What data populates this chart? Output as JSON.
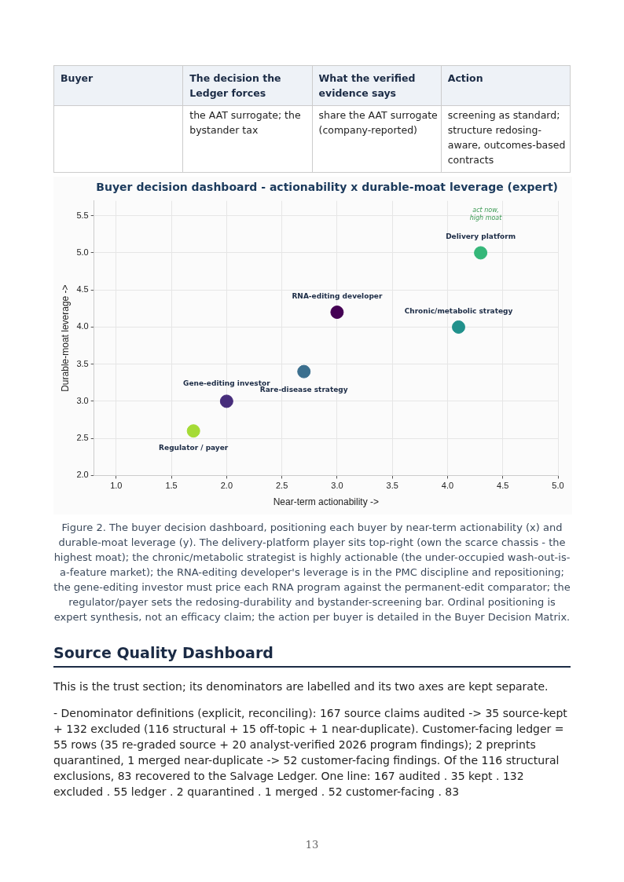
{
  "chart_data": {
    "type": "scatter",
    "title": "Buyer decision dashboard - actionability x durable-moat leverage (expert)",
    "xlabel": "Near-term actionability ->",
    "ylabel": "Durable-moat leverage ->",
    "xlim": [
      0.8,
      5.0
    ],
    "ylim": [
      2.0,
      5.7
    ],
    "xticks": [
      {
        "value": 1.0,
        "label": "1.0"
      },
      {
        "value": 1.5,
        "label": "1.5"
      },
      {
        "value": 2.0,
        "label": "2.0"
      },
      {
        "value": 2.5,
        "label": "2.5"
      },
      {
        "value": 3.0,
        "label": "3.0"
      },
      {
        "value": 3.5,
        "label": "3.5"
      },
      {
        "value": 4.0,
        "label": "4.0"
      },
      {
        "value": 4.5,
        "label": "4.5"
      },
      {
        "value": 5.0,
        "label": "5.0"
      }
    ],
    "yticks": [
      {
        "value": 2.0,
        "label": "2.0"
      },
      {
        "value": 2.5,
        "label": "2.5"
      },
      {
        "value": 3.0,
        "label": "3.0"
      },
      {
        "value": 3.5,
        "label": "3.5"
      },
      {
        "value": 4.0,
        "label": "4.0"
      },
      {
        "value": 4.5,
        "label": "4.5"
      },
      {
        "value": 5.0,
        "label": "5.0"
      },
      {
        "value": 5.5,
        "label": "5.5"
      }
    ],
    "grid": true,
    "legend": false,
    "marker": "circle",
    "series": [
      {
        "name": "Regulator / payer",
        "color": "#a5db36",
        "x": [
          1.7
        ],
        "values": [
          2.6
        ]
      },
      {
        "name": "Gene-editing investor",
        "color": "#472d7b",
        "x": [
          2.0
        ],
        "values": [
          3.0
        ]
      },
      {
        "name": "Rare-disease strategy",
        "color": "#3b6f8e",
        "x": [
          2.7
        ],
        "values": [
          3.4
        ]
      },
      {
        "name": "RNA-editing developer",
        "color": "#440154",
        "x": [
          3.0
        ],
        "values": [
          4.2
        ]
      },
      {
        "name": "Chronic/metabolic strategy",
        "color": "#21918c",
        "x": [
          4.1
        ],
        "values": [
          4.0
        ]
      },
      {
        "name": "Delivery platform",
        "color": "#35b779",
        "x": [
          4.3
        ],
        "values": [
          5.0
        ]
      }
    ],
    "annotations": [
      "Buyer",
      "The decision the Ledger forces",
      "What the verified evidence says",
      "Action",
      "the AAT surrogate; the bystander tax",
      "share the AAT surrogate (company-reported)",
      "screening as standard; structure redosing-aware, outcomes-based contracts",
      "act now,\nhigh moat",
      "Figure 2. The buyer decision dashboard, positioning each buyer by near-term actionability (x) and durable-moat leverage (y). The delivery-platform player sits top-right (own the scarce chassis - the highest moat); the chronic/metabolic strategist is highly actionable (the under-occupied wash-out-is-a-feature market); the RNA-editing developer's leverage is in the PMC discipline and repositioning; the gene-editing investor must price each RNA program against the permanent-edit comparator; the regulator/payer sets the redosing-durability and bystander-screening bar. Ordinal positioning is expert synthesis, not an efficacy claim; the action per buyer is detailed in the Buyer Decision Matrix.",
      "Source Quality Dashboard",
      "This is the trust section; its denominators are labelled and its two axes are kept separate.",
      "- Denominator definitions (explicit, reconciling): 167 source claims audited -> 35 source-kept + 132 excluded (116 structural + 15 off-topic + 1 near-duplicate). Customer-facing ledger = 55 rows (35 re-graded source + 20 analyst-verified 2026 program findings); 2 preprints quarantined, 1 merged near-duplicate -> 52 customer-facing findings. Of the 116 structural exclusions, 83 recovered to the Salvage Ledger. One line: 167 audited . 35 kept . 132 excluded . 55 ledger . 2 quarantined . 1 merged . 52 customer-facing . 83",
      "13"
    ]
  }
}
